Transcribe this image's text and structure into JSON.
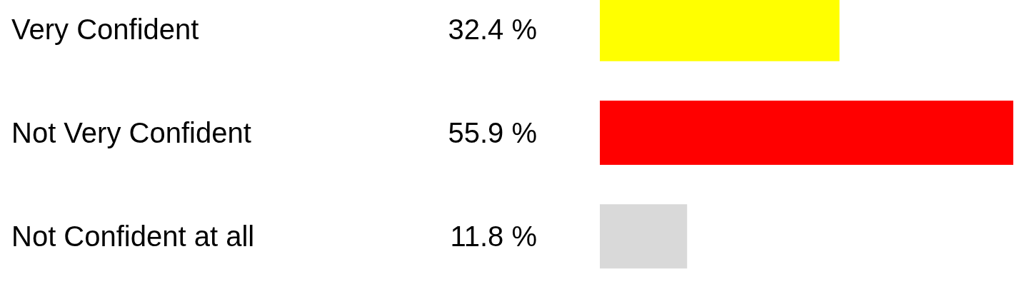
{
  "chart_data": {
    "type": "bar",
    "orientation": "horizontal",
    "categories": [
      "Very Confident",
      "Not Very Confident",
      "Not Confident at all"
    ],
    "values": [
      32.4,
      55.9,
      11.8
    ],
    "colors": [
      "#ffff00",
      "#ff0000",
      "#d9d9d9"
    ],
    "value_labels": [
      "32.4 %",
      "55.9 %",
      "11.8 %"
    ],
    "grid": false
  }
}
